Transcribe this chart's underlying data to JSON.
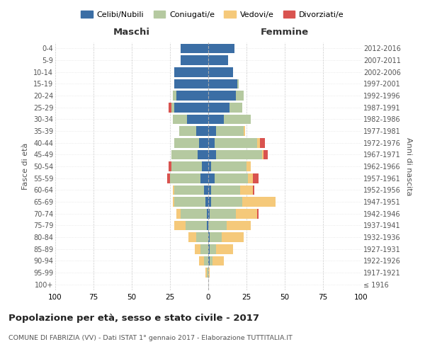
{
  "age_groups": [
    "100+",
    "95-99",
    "90-94",
    "85-89",
    "80-84",
    "75-79",
    "70-74",
    "65-69",
    "60-64",
    "55-59",
    "50-54",
    "45-49",
    "40-44",
    "35-39",
    "30-34",
    "25-29",
    "20-24",
    "15-19",
    "10-14",
    "5-9",
    "0-4"
  ],
  "birth_years": [
    "≤ 1916",
    "1917-1921",
    "1922-1926",
    "1927-1931",
    "1932-1936",
    "1937-1941",
    "1942-1946",
    "1947-1951",
    "1952-1956",
    "1957-1961",
    "1962-1966",
    "1967-1971",
    "1972-1976",
    "1977-1981",
    "1982-1986",
    "1987-1991",
    "1992-1996",
    "1997-2001",
    "2002-2006",
    "2007-2011",
    "2012-2016"
  ],
  "colors": {
    "celibi": "#3b6ea5",
    "coniugati": "#b5c9a0",
    "vedovi": "#f5c97a",
    "divorziati": "#d9534f"
  },
  "maschi": {
    "celibi": [
      0,
      0,
      0,
      0,
      0,
      1,
      1,
      2,
      3,
      5,
      4,
      7,
      6,
      8,
      14,
      22,
      21,
      22,
      22,
      18,
      18
    ],
    "coniugati": [
      0,
      1,
      3,
      5,
      8,
      14,
      17,
      20,
      19,
      20,
      20,
      17,
      16,
      11,
      9,
      2,
      2,
      0,
      0,
      0,
      0
    ],
    "vedovi": [
      0,
      1,
      3,
      4,
      5,
      7,
      3,
      1,
      1,
      0,
      0,
      0,
      0,
      0,
      0,
      0,
      0,
      0,
      0,
      0,
      0
    ],
    "divorziati": [
      0,
      0,
      0,
      0,
      0,
      0,
      0,
      0,
      0,
      2,
      2,
      0,
      0,
      0,
      0,
      2,
      0,
      0,
      0,
      0,
      0
    ]
  },
  "femmine": {
    "celibi": [
      0,
      0,
      1,
      1,
      1,
      0,
      1,
      2,
      2,
      4,
      2,
      5,
      4,
      5,
      10,
      14,
      18,
      19,
      16,
      13,
      17
    ],
    "coniugati": [
      0,
      0,
      2,
      4,
      8,
      12,
      17,
      20,
      19,
      22,
      23,
      30,
      28,
      18,
      18,
      8,
      5,
      1,
      0,
      0,
      0
    ],
    "vedovi": [
      0,
      1,
      7,
      11,
      14,
      16,
      14,
      22,
      8,
      3,
      3,
      1,
      2,
      1,
      0,
      0,
      0,
      0,
      0,
      0,
      0
    ],
    "divorziati": [
      0,
      0,
      0,
      0,
      0,
      0,
      1,
      0,
      1,
      4,
      0,
      3,
      3,
      0,
      0,
      0,
      0,
      0,
      0,
      0,
      0
    ]
  },
  "title": "Popolazione per età, sesso e stato civile - 2017",
  "subtitle": "COMUNE DI FABRIZIA (VV) - Dati ISTAT 1° gennaio 2017 - Elaborazione TUTTITALIA.IT",
  "xlabel_left": "Maschi",
  "xlabel_right": "Femmine",
  "ylabel_left": "Fasce di età",
  "ylabel_right": "Anni di nascita",
  "xlim": 100,
  "legend_labels": [
    "Celibi/Nubili",
    "Coniugati/e",
    "Vedovi/e",
    "Divorziati/e"
  ]
}
